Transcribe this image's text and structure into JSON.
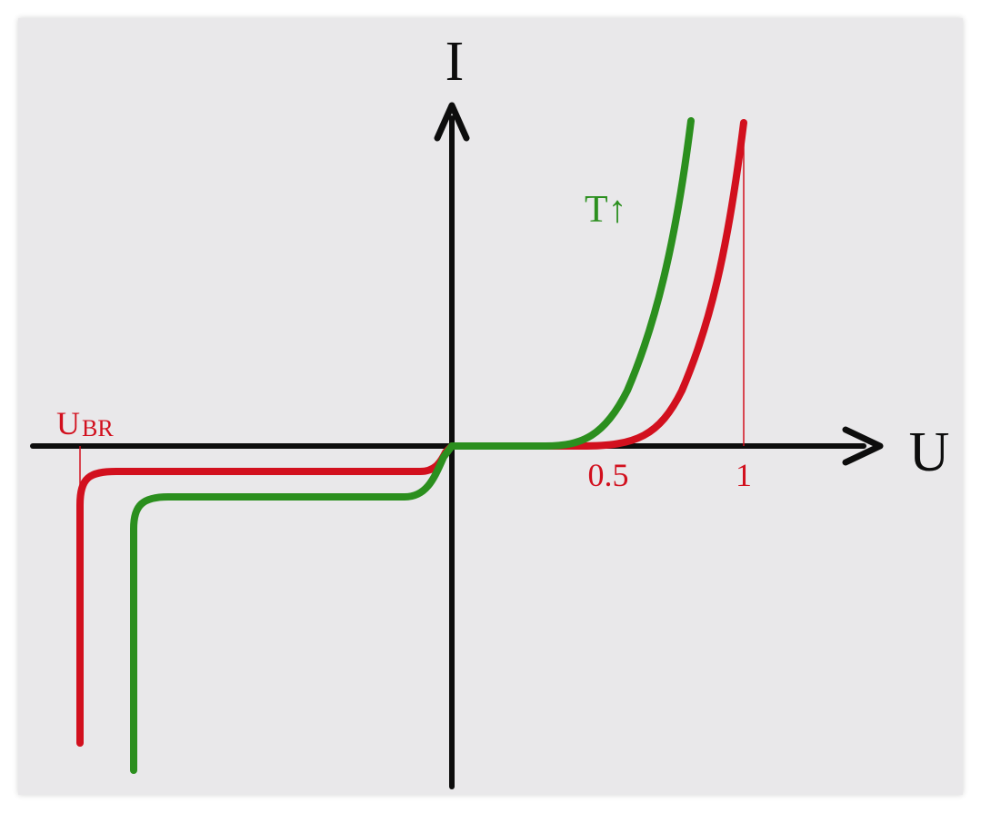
{
  "axes": {
    "x_label": "U",
    "y_label": "I"
  },
  "ticks": [
    {
      "label": "0.5"
    },
    {
      "label": "1"
    }
  ],
  "breakdown_label": {
    "main": "U",
    "sub": "BR"
  },
  "temperature_label": "T↑",
  "colors": {
    "axis": "#0d0d0d",
    "red_curve": "#d2101e",
    "green_curve": "#2b8f1e",
    "background": "#e9e8ea"
  },
  "curves": [
    {
      "id": "red",
      "color": "#d2101e"
    },
    {
      "id": "green",
      "color": "#2b8f1e"
    }
  ]
}
